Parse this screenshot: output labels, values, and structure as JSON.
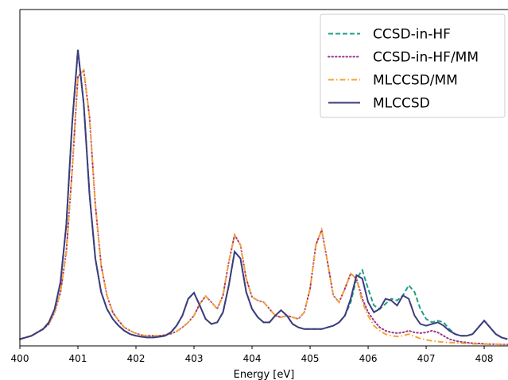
{
  "chart_data": {
    "type": "line",
    "x_label": "Energy [eV]",
    "xlim": [
      400,
      408.41
    ],
    "ylim": [
      0,
      1
    ],
    "xticks": [
      400,
      401,
      402,
      403,
      404,
      405,
      406,
      407,
      408
    ],
    "legend": "upper right",
    "grid": false,
    "x": [
      400.0,
      400.1,
      400.2,
      400.3,
      400.4,
      400.5,
      400.6,
      400.7,
      400.8,
      400.9,
      401.0,
      401.1,
      401.2,
      401.3,
      401.4,
      401.5,
      401.6,
      401.7,
      401.8,
      401.9,
      402.0,
      402.1,
      402.2,
      402.3,
      402.4,
      402.5,
      402.6,
      402.7,
      402.8,
      402.9,
      403.0,
      403.1,
      403.2,
      403.3,
      403.4,
      403.5,
      403.6,
      403.7,
      403.8,
      403.9,
      404.0,
      404.1,
      404.2,
      404.3,
      404.4,
      404.5,
      404.6,
      404.7,
      404.8,
      404.9,
      405.0,
      405.1,
      405.2,
      405.3,
      405.4,
      405.5,
      405.6,
      405.7,
      405.8,
      405.9,
      406.0,
      406.1,
      406.2,
      406.3,
      406.4,
      406.5,
      406.6,
      406.7,
      406.8,
      406.9,
      407.0,
      407.1,
      407.2,
      407.3,
      407.4,
      407.5,
      407.6,
      407.7,
      407.8,
      407.9,
      408.0,
      408.1,
      408.2,
      408.3,
      408.4
    ],
    "series": [
      {
        "name": "CCSD-in-HF",
        "color": "#1f9e89",
        "linestyle": "dashed",
        "values": [
          0.02,
          0.025,
          0.03,
          0.04,
          0.05,
          0.07,
          0.11,
          0.19,
          0.36,
          0.66,
          0.88,
          0.72,
          0.45,
          0.26,
          0.16,
          0.11,
          0.08,
          0.06,
          0.045,
          0.035,
          0.03,
          0.027,
          0.025,
          0.025,
          0.027,
          0.03,
          0.04,
          0.06,
          0.09,
          0.14,
          0.158,
          0.12,
          0.08,
          0.065,
          0.07,
          0.1,
          0.18,
          0.28,
          0.26,
          0.16,
          0.11,
          0.085,
          0.07,
          0.07,
          0.09,
          0.106,
          0.09,
          0.065,
          0.055,
          0.05,
          0.05,
          0.05,
          0.05,
          0.055,
          0.06,
          0.07,
          0.09,
          0.13,
          0.2,
          0.225,
          0.17,
          0.12,
          0.11,
          0.125,
          0.14,
          0.135,
          0.15,
          0.18,
          0.16,
          0.11,
          0.08,
          0.07,
          0.075,
          0.07,
          0.05,
          0.035,
          0.03,
          0.03,
          0.035,
          0.055,
          0.075,
          0.055,
          0.035,
          0.025,
          0.02
        ]
      },
      {
        "name": "CCSD-in-HF/MM",
        "color": "#9c3587",
        "linestyle": "dotted",
        "values": [
          0.02,
          0.025,
          0.03,
          0.04,
          0.05,
          0.065,
          0.1,
          0.16,
          0.28,
          0.52,
          0.8,
          0.82,
          0.68,
          0.42,
          0.24,
          0.15,
          0.1,
          0.075,
          0.055,
          0.045,
          0.037,
          0.032,
          0.03,
          0.03,
          0.03,
          0.032,
          0.036,
          0.043,
          0.055,
          0.07,
          0.09,
          0.125,
          0.148,
          0.13,
          0.11,
          0.15,
          0.25,
          0.33,
          0.3,
          0.2,
          0.145,
          0.135,
          0.13,
          0.11,
          0.09,
          0.085,
          0.09,
          0.085,
          0.08,
          0.1,
          0.17,
          0.3,
          0.345,
          0.25,
          0.15,
          0.13,
          0.17,
          0.215,
          0.2,
          0.14,
          0.1,
          0.075,
          0.055,
          0.045,
          0.04,
          0.038,
          0.04,
          0.045,
          0.04,
          0.038,
          0.04,
          0.045,
          0.04,
          0.03,
          0.02,
          0.015,
          0.012,
          0.01,
          0.008,
          0.007,
          0.006,
          0.005,
          0.005,
          0.004,
          0.004
        ]
      },
      {
        "name": "MLCCSD/MM",
        "color": "#f7a234",
        "linestyle": "dashdot",
        "values": [
          0.02,
          0.025,
          0.03,
          0.04,
          0.05,
          0.065,
          0.1,
          0.16,
          0.28,
          0.52,
          0.8,
          0.82,
          0.68,
          0.42,
          0.24,
          0.15,
          0.1,
          0.075,
          0.055,
          0.045,
          0.037,
          0.032,
          0.03,
          0.03,
          0.03,
          0.032,
          0.036,
          0.043,
          0.055,
          0.07,
          0.09,
          0.125,
          0.148,
          0.13,
          0.11,
          0.15,
          0.25,
          0.33,
          0.3,
          0.2,
          0.145,
          0.135,
          0.13,
          0.11,
          0.09,
          0.085,
          0.09,
          0.085,
          0.08,
          0.1,
          0.17,
          0.3,
          0.345,
          0.25,
          0.15,
          0.13,
          0.17,
          0.215,
          0.2,
          0.13,
          0.09,
          0.06,
          0.045,
          0.035,
          0.03,
          0.028,
          0.03,
          0.035,
          0.028,
          0.022,
          0.018,
          0.015,
          0.013,
          0.011,
          0.01,
          0.009,
          0.008,
          0.007,
          0.006,
          0.006,
          0.005,
          0.005,
          0.005,
          0.005,
          0.005
        ]
      },
      {
        "name": "MLCCSD",
        "color": "#3e3c7d",
        "linestyle": "solid",
        "values": [
          0.02,
          0.025,
          0.03,
          0.04,
          0.05,
          0.07,
          0.11,
          0.19,
          0.36,
          0.66,
          0.88,
          0.72,
          0.45,
          0.26,
          0.16,
          0.11,
          0.08,
          0.06,
          0.045,
          0.035,
          0.03,
          0.027,
          0.025,
          0.025,
          0.027,
          0.03,
          0.04,
          0.06,
          0.09,
          0.14,
          0.158,
          0.12,
          0.08,
          0.065,
          0.07,
          0.1,
          0.18,
          0.28,
          0.26,
          0.16,
          0.11,
          0.085,
          0.07,
          0.07,
          0.09,
          0.106,
          0.09,
          0.065,
          0.055,
          0.05,
          0.05,
          0.05,
          0.05,
          0.055,
          0.06,
          0.07,
          0.09,
          0.14,
          0.21,
          0.2,
          0.13,
          0.1,
          0.11,
          0.14,
          0.135,
          0.12,
          0.15,
          0.14,
          0.09,
          0.065,
          0.06,
          0.065,
          0.07,
          0.06,
          0.045,
          0.035,
          0.03,
          0.03,
          0.035,
          0.055,
          0.075,
          0.055,
          0.035,
          0.025,
          0.02
        ]
      }
    ]
  }
}
